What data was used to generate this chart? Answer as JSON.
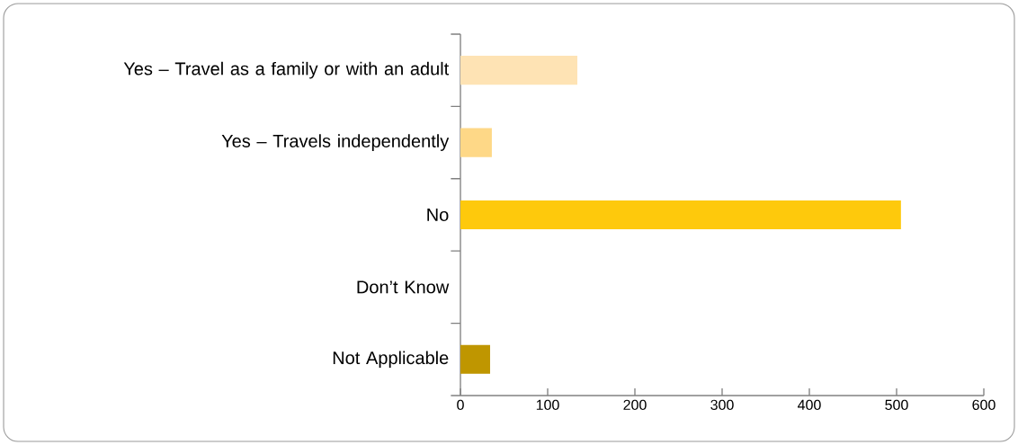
{
  "chart_data": {
    "type": "bar",
    "orientation": "horizontal",
    "categories": [
      "Yes – Travel as a family or with an adult",
      "Yes – Travels independently",
      "No",
      "Don’t Know",
      "Not Applicable"
    ],
    "values": [
      134,
      36,
      505,
      0,
      34
    ],
    "colors": [
      "#fee3b4",
      "#fed887",
      "#fec90c",
      "#ffc90e",
      "#bf9600"
    ],
    "xlim": [
      0,
      600
    ],
    "xticks": [
      0,
      100,
      200,
      300,
      400,
      500,
      600
    ],
    "grid": false
  }
}
